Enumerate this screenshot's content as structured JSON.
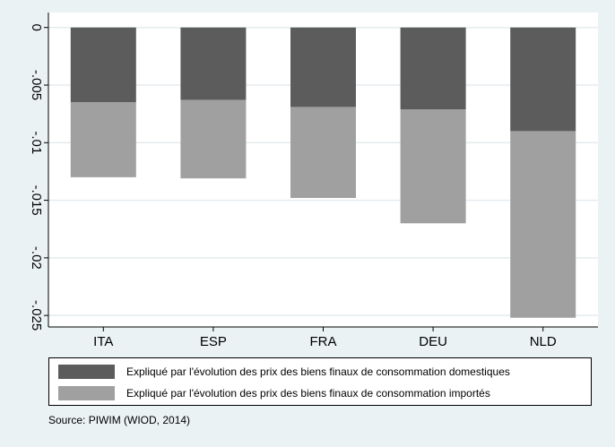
{
  "chart_data": {
    "type": "bar",
    "stacked": true,
    "categories": [
      "ITA",
      "ESP",
      "FRA",
      "DEU",
      "NLD"
    ],
    "series": [
      {
        "name": "Expliqué par l'évolution des prix des biens finaux de consommation domestiques",
        "color": "#5c5c5c",
        "values": [
          -0.0065,
          -0.0063,
          -0.0069,
          -0.0071,
          -0.009
        ]
      },
      {
        "name": "Expliqué par l'évolution des prix des biens finaux de consommation importés",
        "color": "#a0a0a0",
        "values": [
          -0.0065,
          -0.0068,
          -0.0079,
          -0.0099,
          -0.0162
        ]
      }
    ],
    "ylim": [
      -0.026,
      0.0013
    ],
    "yticks": [
      {
        "value": 0,
        "label": "0"
      },
      {
        "value": -0.005,
        "label": "-.005"
      },
      {
        "value": -0.01,
        "label": "-.01"
      },
      {
        "value": -0.015,
        "label": "-.015"
      },
      {
        "value": -0.02,
        "label": "-.02"
      },
      {
        "value": -0.025,
        "label": "-.025"
      }
    ],
    "grid": true,
    "legend_position": "bottom",
    "title": "",
    "xlabel": "",
    "ylabel": ""
  },
  "note": "Source: PIWIM (WIOD, 2014)"
}
